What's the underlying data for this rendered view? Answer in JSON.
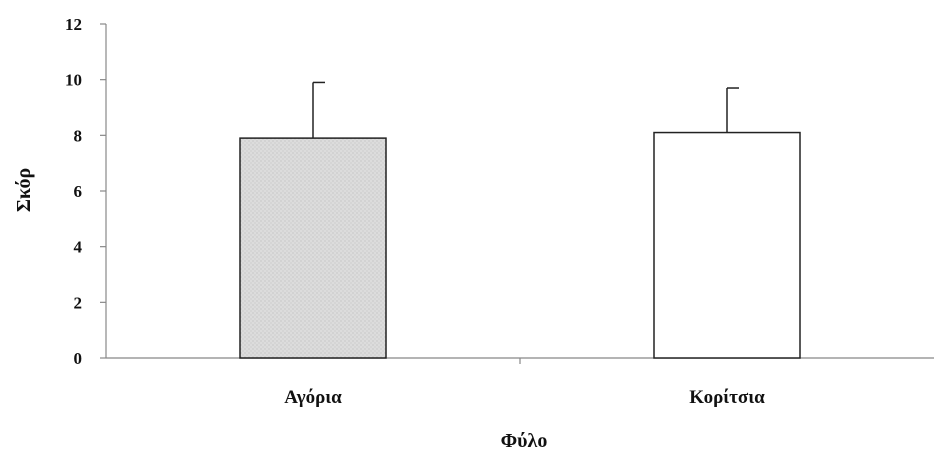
{
  "chart_data": {
    "type": "bar",
    "categories": [
      "Αγόρια",
      "Κορίτσια"
    ],
    "values": [
      7.9,
      8.1
    ],
    "errors": [
      2.0,
      1.6
    ],
    "bar_colors": [
      "#d9d9d9",
      "#ffffff"
    ],
    "xlabel": "Φύλο",
    "ylabel": "Σκόρ",
    "ylim": [
      0,
      12
    ],
    "yticks": [
      0,
      2,
      4,
      6,
      8,
      10,
      12
    ],
    "grid": false,
    "legend": "none"
  }
}
